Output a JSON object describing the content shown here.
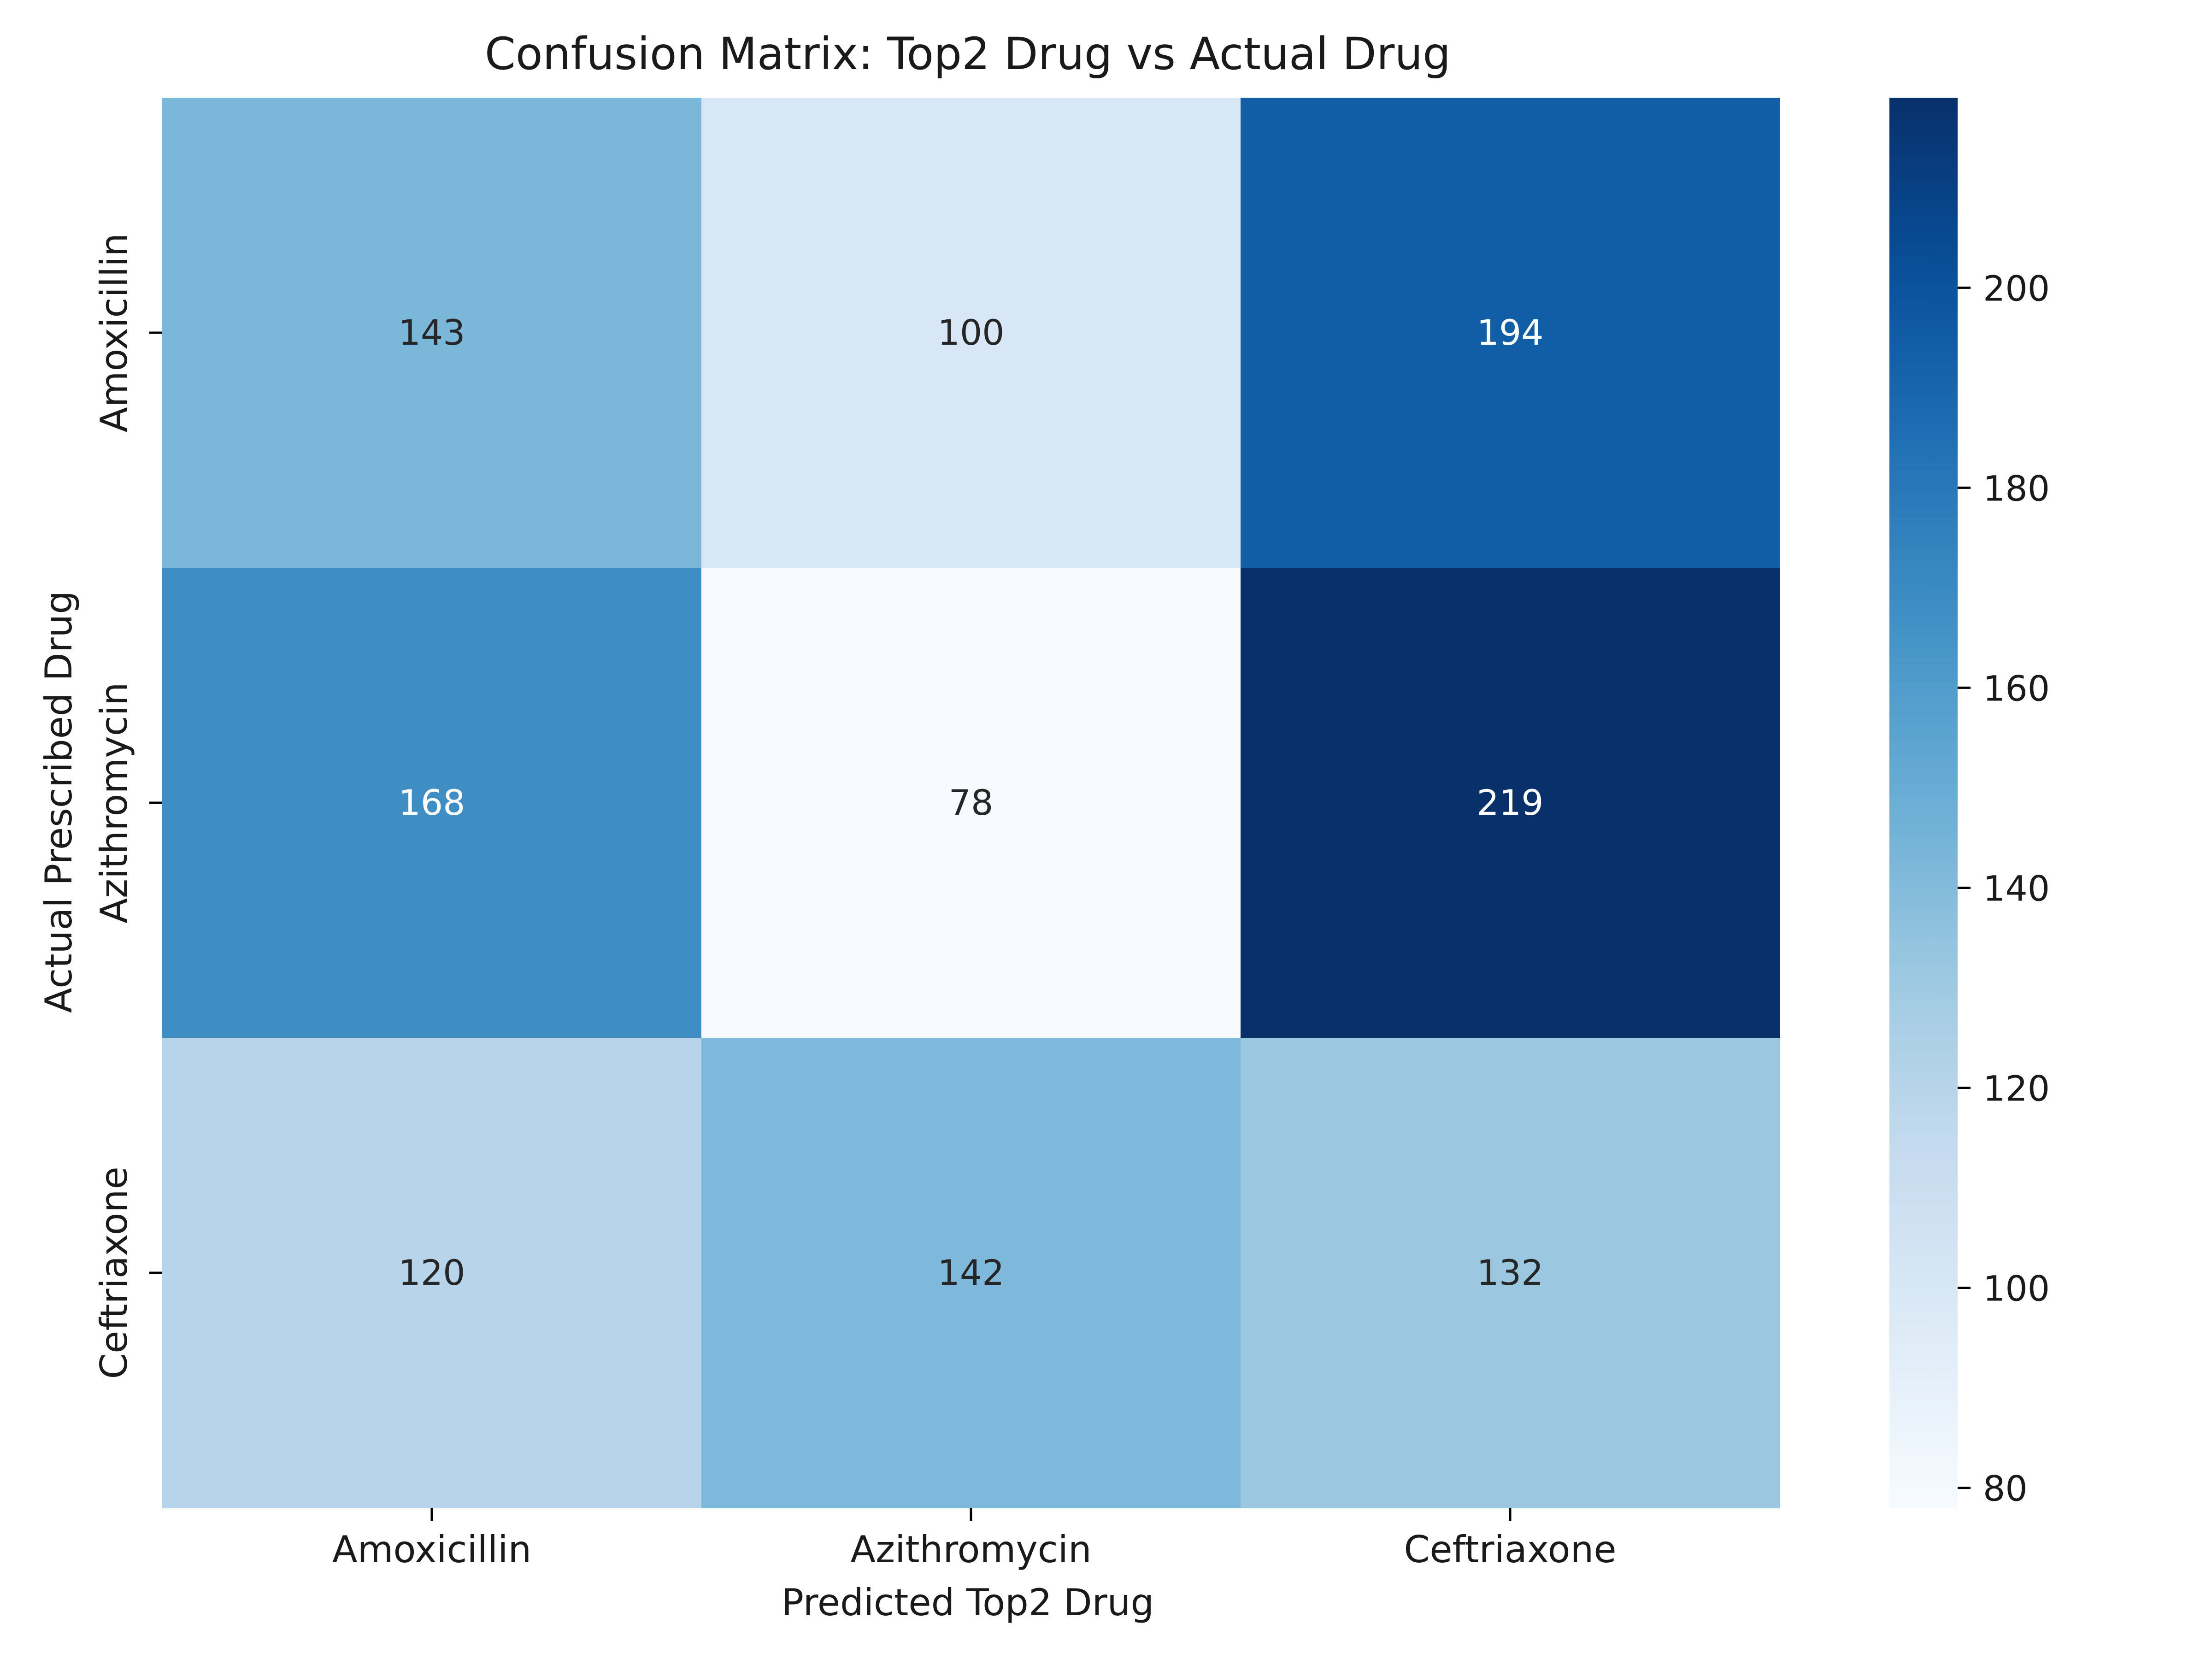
{
  "chart_data": {
    "type": "heatmap",
    "title": "Confusion Matrix: Top2 Drug vs Actual Drug",
    "xlabel": "Predicted Top2 Drug",
    "ylabel": "Actual Prescribed Drug",
    "x_categories": [
      "Amoxicillin",
      "Azithromycin",
      "Ceftriaxone"
    ],
    "y_categories": [
      "Amoxicillin",
      "Azithromycin",
      "Ceftriaxone"
    ],
    "values": [
      [
        143,
        100,
        194
      ],
      [
        168,
        78,
        219
      ],
      [
        120,
        142,
        132
      ]
    ],
    "colormap": "Blues",
    "colorbar": {
      "range": [
        78,
        219
      ],
      "ticks": [
        80,
        100,
        120,
        140,
        160,
        180,
        200
      ]
    },
    "colors": {
      "low": "#f7fbff",
      "high": "#08306b",
      "annotation_dark": "#262626",
      "annotation_light": "#ffffff"
    }
  }
}
